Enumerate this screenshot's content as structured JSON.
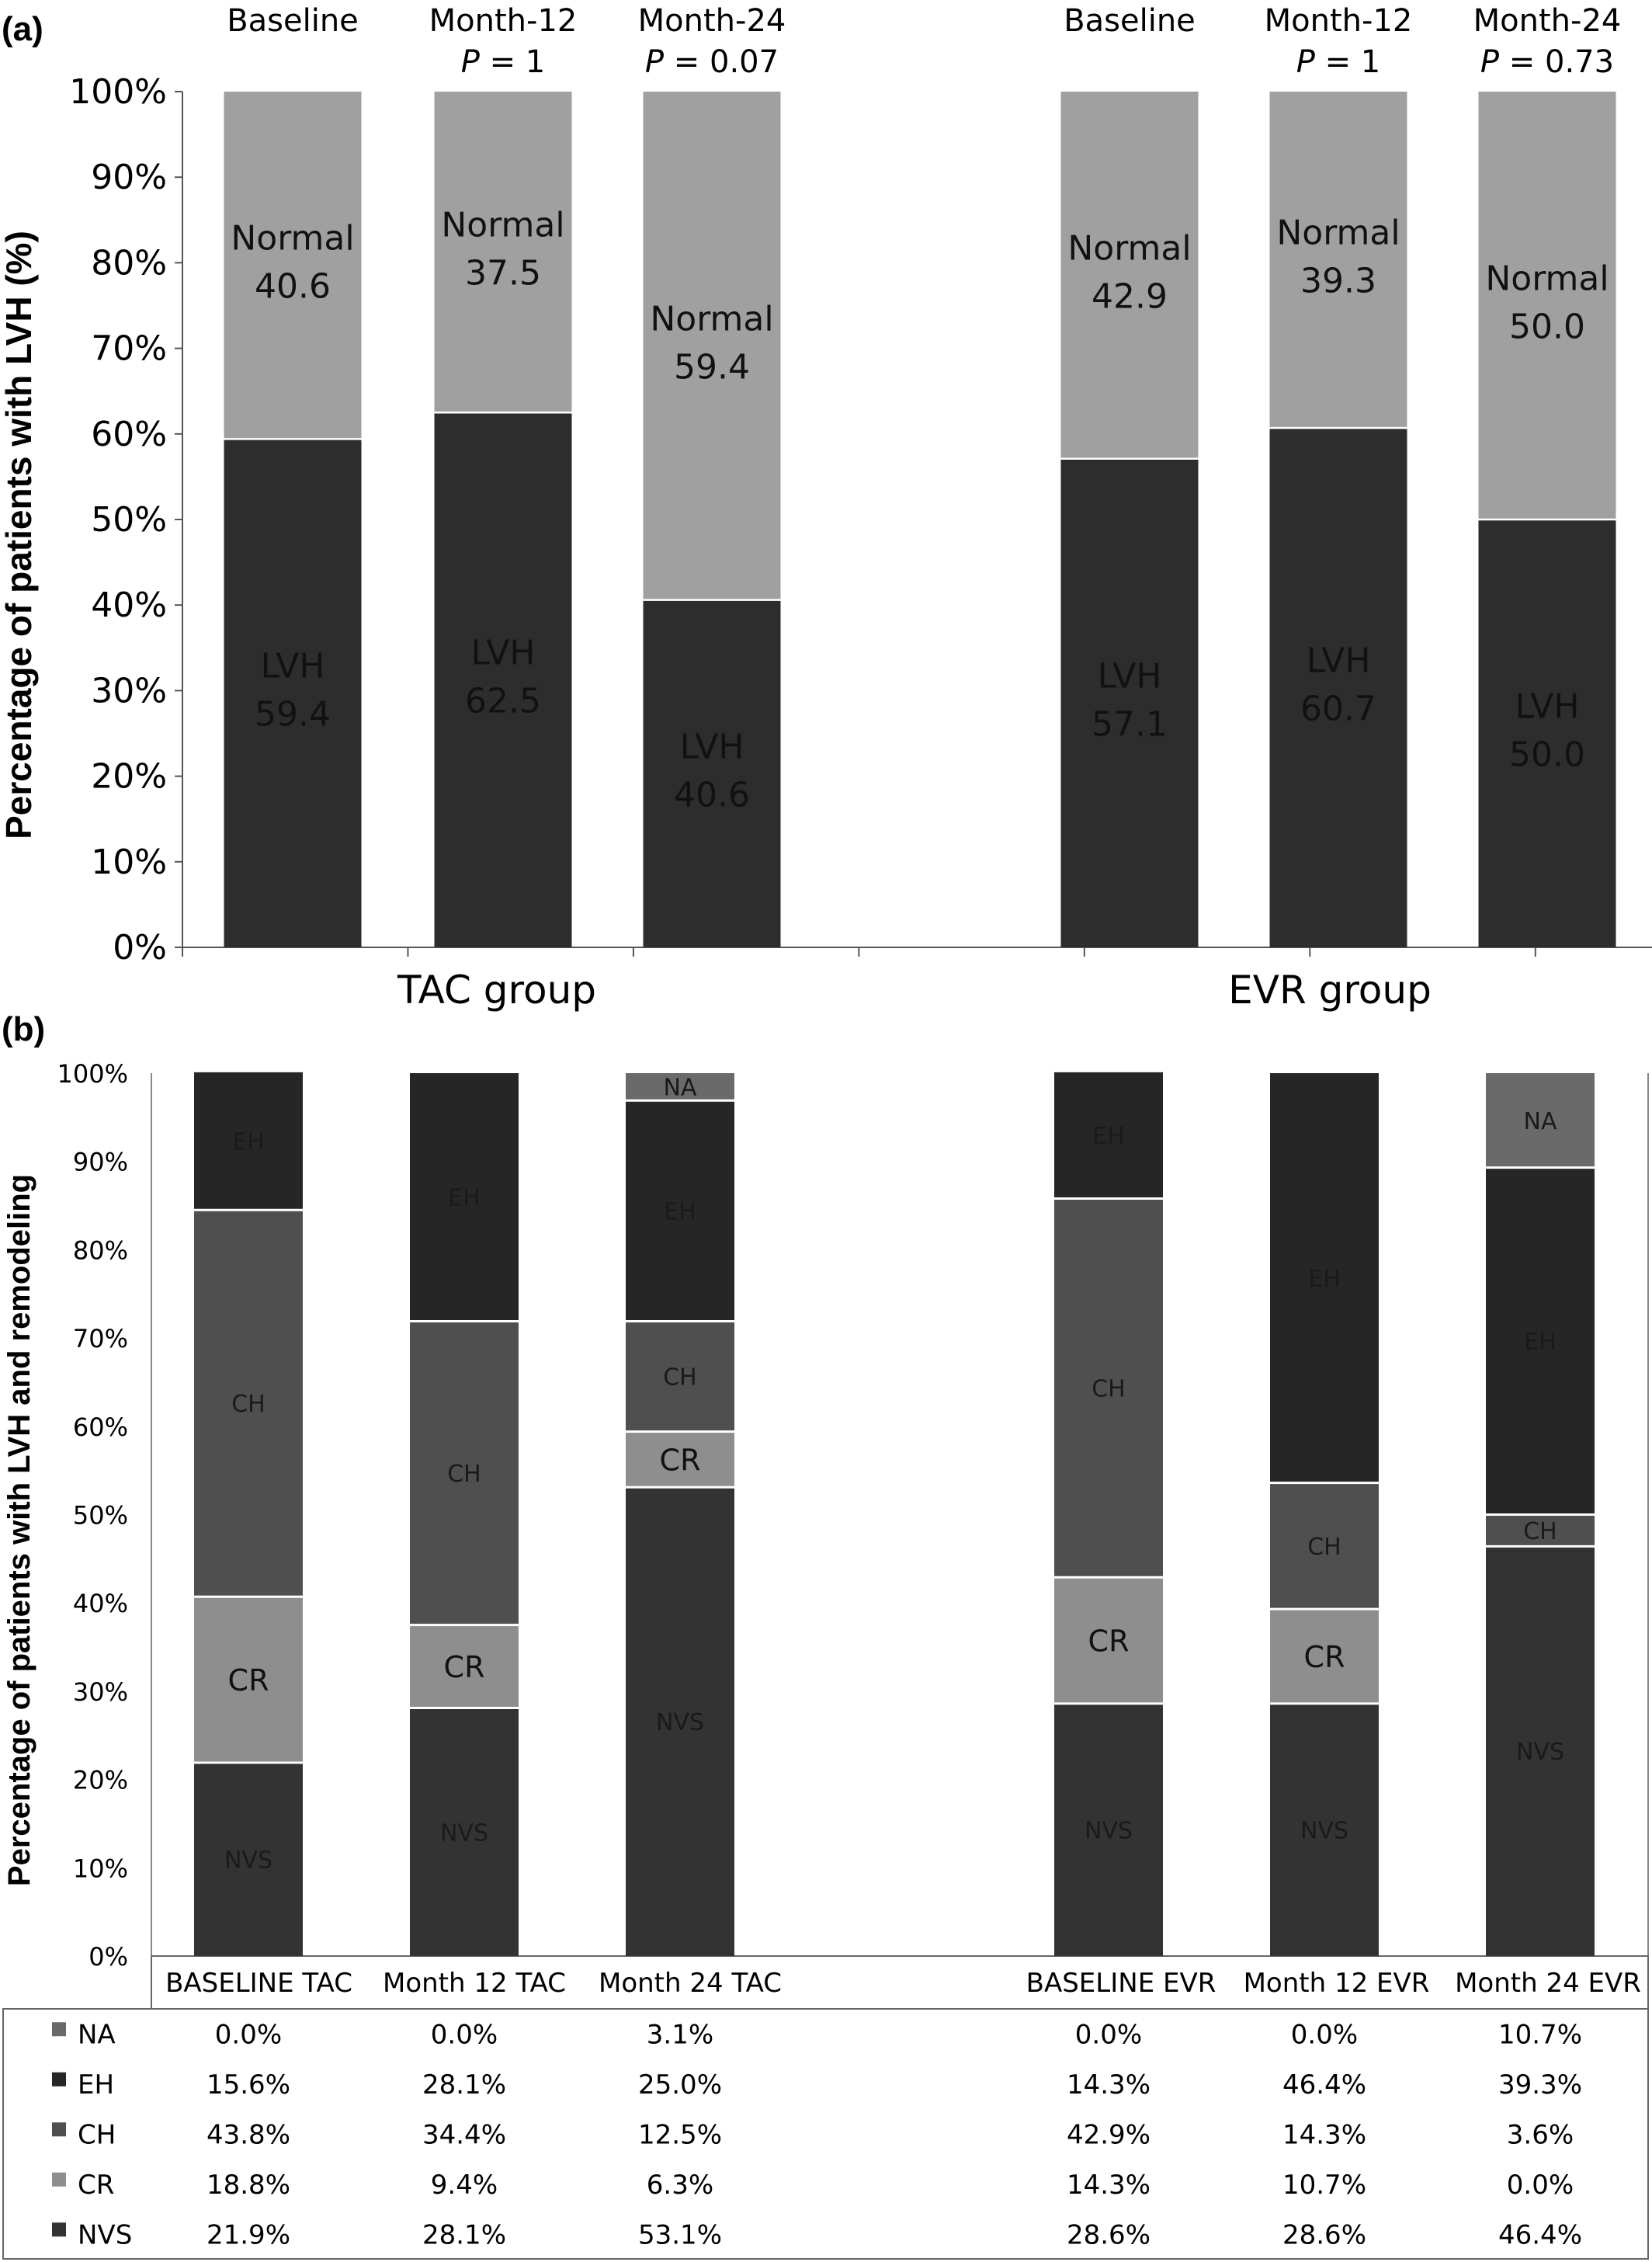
{
  "chart_data": [
    {
      "panel_label": "(a)",
      "type": "bar",
      "stacked": true,
      "percent": true,
      "ylabel": "Percentage of patients with LVH (%)",
      "ylim": [
        0,
        100
      ],
      "yticks": [
        "0%",
        "10%",
        "20%",
        "30%",
        "40%",
        "50%",
        "60%",
        "70%",
        "80%",
        "90%",
        "100%"
      ],
      "groups": [
        {
          "label": "TAC group",
          "bars": [
            {
              "top_label": "Baseline",
              "p_prefix": "",
              "p_value": "",
              "values": {
                "LVH": 59.4,
                "Normal": 40.6
              },
              "lvh_text": "59.4",
              "normal_text": "40.6"
            },
            {
              "top_label": "Month-12",
              "p_prefix": "P",
              "p_value": " = 1",
              "values": {
                "LVH": 62.5,
                "Normal": 37.5
              },
              "lvh_text": "62.5",
              "normal_text": "37.5"
            },
            {
              "top_label": "Month-24",
              "p_prefix": "P",
              "p_value": " = 0.07",
              "values": {
                "LVH": 40.6,
                "Normal": 59.4
              },
              "lvh_text": "40.6",
              "normal_text": "59.4"
            }
          ]
        },
        {
          "label": "EVR group",
          "bars": [
            {
              "top_label": "Baseline",
              "p_prefix": "",
              "p_value": "",
              "values": {
                "LVH": 57.1,
                "Normal": 42.9
              },
              "lvh_text": "57.1",
              "normal_text": "42.9"
            },
            {
              "top_label": "Month-12",
              "p_prefix": "P",
              "p_value": " = 1",
              "values": {
                "LVH": 60.7,
                "Normal": 39.3
              },
              "lvh_text": "60.7",
              "normal_text": "39.3"
            },
            {
              "top_label": "Month-24",
              "p_prefix": "P",
              "p_value": " = 0.73",
              "values": {
                "LVH": 50.0,
                "Normal": 50.0
              },
              "lvh_text": "50.0",
              "normal_text": "50.0"
            }
          ]
        }
      ],
      "series_labels": {
        "LVH": "LVH",
        "Normal": "Normal"
      },
      "colors": {
        "LVH": "#2d2d2d",
        "Normal": "#a0a0a0"
      }
    },
    {
      "panel_label": "(b)",
      "type": "bar",
      "stacked": true,
      "percent": true,
      "ylabel": "Percentage of patients with LVH and remodeling",
      "ylim": [
        0,
        100
      ],
      "yticks": [
        "0%",
        "10%",
        "20%",
        "30%",
        "40%",
        "50%",
        "60%",
        "70%",
        "80%",
        "90%",
        "100%"
      ],
      "categories": [
        "BASELINE TAC",
        "Month 12 TAC",
        "Month 24 TAC",
        "BASELINE EVR",
        "Month 12 EVR",
        "Month 24 EVR"
      ],
      "series": [
        {
          "name": "NVS",
          "color": "#333333",
          "values": [
            21.9,
            28.1,
            53.1,
            28.6,
            28.6,
            46.4
          ],
          "labels": [
            "21.9%",
            "28.1%",
            "53.1%",
            "28.6%",
            "28.6%",
            "46.4%"
          ]
        },
        {
          "name": "CR",
          "color": "#8e8e8e",
          "values": [
            18.8,
            9.4,
            6.3,
            14.3,
            10.7,
            0.0
          ],
          "labels": [
            "18.8%",
            "9.4%",
            "6.3%",
            "14.3%",
            "10.7%",
            "0.0%"
          ]
        },
        {
          "name": "CH",
          "color": "#4f4f4f",
          "values": [
            43.8,
            34.4,
            12.5,
            42.9,
            14.3,
            3.6
          ],
          "labels": [
            "43.8%",
            "34.4%",
            "12.5%",
            "42.9%",
            "14.3%",
            "3.6%"
          ]
        },
        {
          "name": "EH",
          "color": "#262626",
          "values": [
            15.6,
            28.1,
            25.0,
            14.3,
            46.4,
            39.3
          ],
          "labels": [
            "15.6%",
            "28.1%",
            "25.0%",
            "14.3%",
            "46.4%",
            "39.3%"
          ]
        },
        {
          "name": "NA",
          "color": "#6a6a6a",
          "values": [
            0.0,
            0.0,
            3.1,
            0.0,
            0.0,
            10.7
          ],
          "labels": [
            "0.0%",
            "0.0%",
            "3.1%",
            "0.0%",
            "0.0%",
            "10.7%"
          ]
        }
      ],
      "table_row_order": [
        "NA",
        "EH",
        "CH",
        "CR",
        "NVS"
      ],
      "legend": "data-table-left"
    }
  ]
}
